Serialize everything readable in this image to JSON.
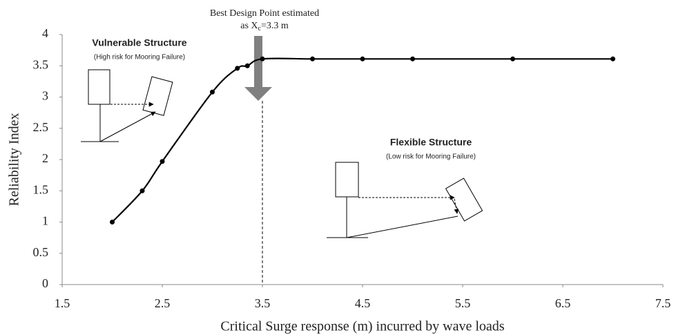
{
  "chart_data": {
    "type": "line",
    "x_label": "Critical Surge response (m) incurred by wave loads",
    "y_label": "Reliability Index",
    "x": [
      2,
      2.3,
      2.5,
      3,
      3.25,
      3.35,
      3.5,
      4,
      4.5,
      5,
      6,
      7
    ],
    "series": [
      {
        "color": "#000000",
        "values": [
          1.0,
          1.5,
          1.97,
          3.08,
          3.46,
          3.5,
          3.61,
          3.61,
          3.61,
          3.61,
          3.61,
          3.61
        ]
      }
    ],
    "xlim": [
      1.5,
      7.5
    ],
    "xticks": [
      1.5,
      2.5,
      3.5,
      4.5,
      5.5,
      6.5,
      7.5
    ],
    "ylim": [
      0,
      4
    ],
    "yticks": [
      0,
      0.5,
      1,
      1.5,
      2,
      2.5,
      3,
      3.5,
      4
    ],
    "grid": false,
    "reference_x": 3.5,
    "annotation": {
      "line1": "Best Design Point estimated",
      "line2_start": "as X",
      "line2_sub": "c",
      "line2_end": "=3.3 m"
    },
    "left_note": {
      "title": "Vulnerable Structure",
      "subtitle": "(High risk for Mooring Failure)"
    },
    "right_note": {
      "title": "Flexible Structure",
      "subtitle": "(Low risk for Mooring Failure)"
    }
  }
}
